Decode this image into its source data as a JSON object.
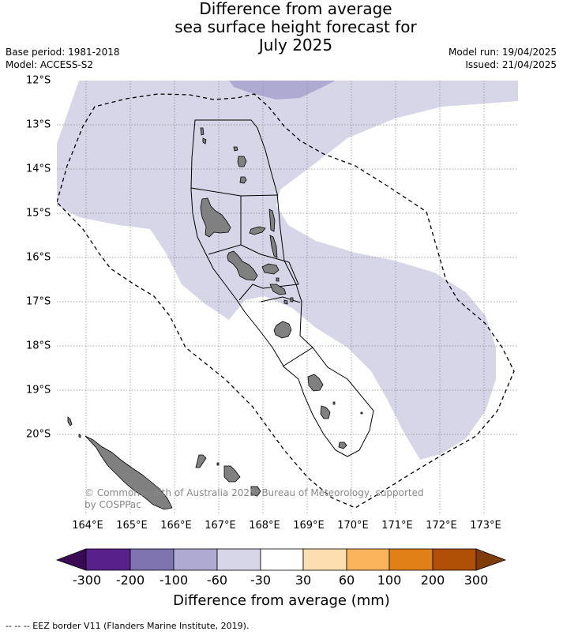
{
  "title": {
    "line1": "Difference from average",
    "line2": "sea surface height forecast for",
    "line3": "July 2025"
  },
  "meta": {
    "base_period": "Base period: 1981-2018",
    "model": "Model: ACCESS-S2",
    "model_run": "Model run: 19/04/2025",
    "issued": "Issued: 21/04/2025"
  },
  "map": {
    "region": "Vanuatu",
    "lat_labels": [
      "12°S",
      "13°S",
      "14°S",
      "15°S",
      "16°S",
      "17°S",
      "18°S",
      "19°S",
      "20°S"
    ],
    "lon_labels": [
      "164°E",
      "165°E",
      "166°E",
      "167°E",
      "168°E",
      "169°E",
      "170°E",
      "171°E",
      "172°E",
      "173°E"
    ],
    "copyright": "© Commonwealth of Australia 2025, Bureau of Meteorology, supported by COSPPac",
    "colors": {
      "anomaly_light": "#d6d6e8",
      "anomaly_mid": "#aeaad2",
      "land": "#808080"
    }
  },
  "colorbar": {
    "title": "Difference from average (mm)",
    "ticks": [
      "-300",
      "-200",
      "-100",
      "-60",
      "-30",
      "30",
      "60",
      "100",
      "200",
      "300"
    ],
    "colors": [
      "#3b0a55",
      "#58208a",
      "#7f73b0",
      "#aeaad2",
      "#d6d6e8",
      "#ffffff",
      "#fddeb0",
      "#fbb45b",
      "#e08016",
      "#b05006",
      "#7f3b08"
    ]
  },
  "footnote": "--  --  -- EEZ border V11 (Flanders Marine Institute, 2019)."
}
